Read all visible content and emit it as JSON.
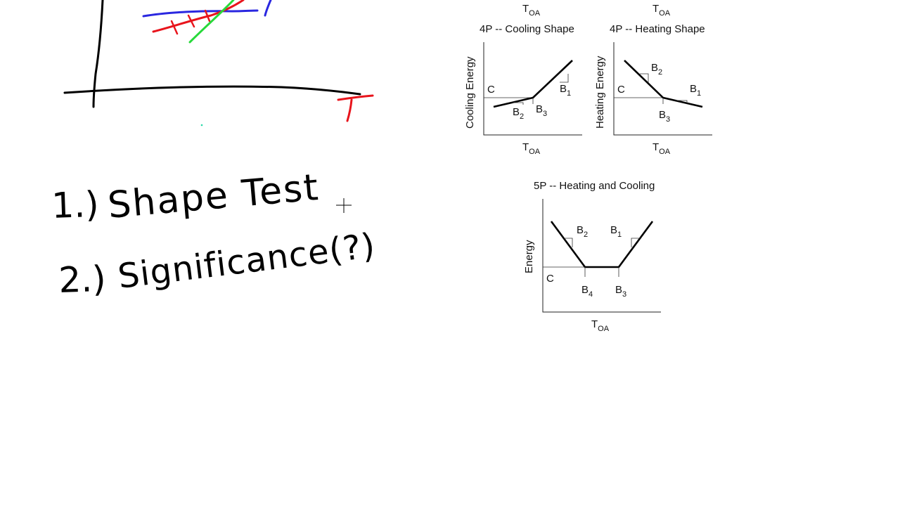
{
  "colors": {
    "ink_black": "#000000",
    "ink_red": "#e8141c",
    "ink_blue": "#2a27e0",
    "ink_green": "#27d93a"
  },
  "cursor": {
    "icon": "crosshair-cursor-icon"
  },
  "handwriting": {
    "axis_label": "T",
    "item1_number": "1.)",
    "item1_text": "Shape Test",
    "item2_number": "2.)",
    "item2_text": "Significance(?)"
  },
  "diagrams": {
    "top_toa": {
      "main": "T",
      "sub": "OA"
    },
    "cooling": {
      "top_label": {
        "main": "T",
        "sub": "OA"
      },
      "title": "4P -- Cooling Shape",
      "ylabel": "Cooling Energy",
      "xlabel": {
        "main": "T",
        "sub": "OA"
      },
      "labels": {
        "C": "C",
        "B1": {
          "main": "B",
          "sub": "1"
        },
        "B2": {
          "main": "B",
          "sub": "2"
        },
        "B3": {
          "main": "B",
          "sub": "3"
        }
      }
    },
    "heating": {
      "top_label": {
        "main": "T",
        "sub": "OA"
      },
      "title": "4P -- Heating Shape",
      "ylabel": "Heating Energy",
      "xlabel": {
        "main": "T",
        "sub": "OA"
      },
      "labels": {
        "C": "C",
        "B1": {
          "main": "B",
          "sub": "1"
        },
        "B2": {
          "main": "B",
          "sub": "2"
        },
        "B3": {
          "main": "B",
          "sub": "3"
        }
      }
    },
    "five_p": {
      "title": "5P -- Heating and Cooling",
      "ylabel": "Energy",
      "xlabel": {
        "main": "T",
        "sub": "OA"
      },
      "labels": {
        "C": "C",
        "B1": {
          "main": "B",
          "sub": "1"
        },
        "B2": {
          "main": "B",
          "sub": "2"
        },
        "B3": {
          "main": "B",
          "sub": "3"
        },
        "B4": {
          "main": "B",
          "sub": "4"
        }
      }
    }
  }
}
